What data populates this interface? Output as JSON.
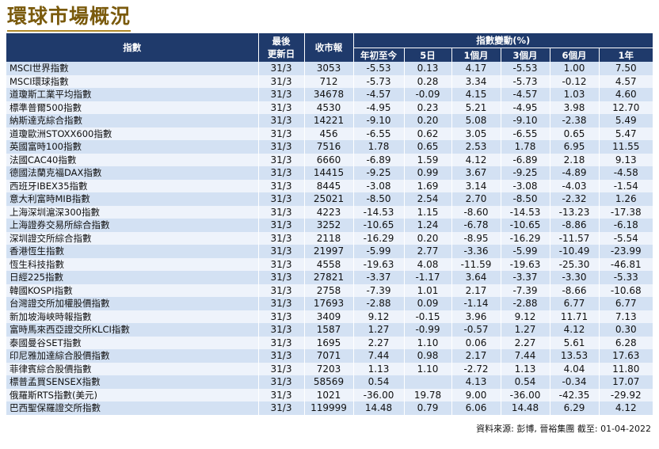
{
  "title": "環球市場概況",
  "headers": {
    "index": "指數",
    "last_update_l1": "最後",
    "last_update_l2": "更新日",
    "close": "收市報",
    "change_group": "指數變動(%)",
    "periods": [
      "年初至今",
      "5日",
      "1個月",
      "3個月",
      "6個月",
      "1年"
    ]
  },
  "rows": [
    {
      "name": "MSCI世界指數",
      "date": "31/3",
      "close": "3053",
      "ytd": "-5.53",
      "d5": "0.13",
      "m1": "4.17",
      "m3": "-5.53",
      "m6": "1.00",
      "y1": "7.50"
    },
    {
      "name": "MSCI環球指數",
      "date": "31/3",
      "close": "712",
      "ytd": "-5.73",
      "d5": "0.28",
      "m1": "3.34",
      "m3": "-5.73",
      "m6": "-0.12",
      "y1": "4.57"
    },
    {
      "name": "道瓊斯工業平均指數",
      "date": "31/3",
      "close": "34678",
      "ytd": "-4.57",
      "d5": "-0.09",
      "m1": "4.15",
      "m3": "-4.57",
      "m6": "1.03",
      "y1": "4.60"
    },
    {
      "name": "標準普爾500指數",
      "date": "31/3",
      "close": "4530",
      "ytd": "-4.95",
      "d5": "0.23",
      "m1": "5.21",
      "m3": "-4.95",
      "m6": "3.98",
      "y1": "12.70"
    },
    {
      "name": "納斯達克綜合指數",
      "date": "31/3",
      "close": "14221",
      "ytd": "-9.10",
      "d5": "0.20",
      "m1": "5.08",
      "m3": "-9.10",
      "m6": "-2.38",
      "y1": "5.49"
    },
    {
      "name": "道瓊歐洲STOXX600指數",
      "date": "31/3",
      "close": "456",
      "ytd": "-6.55",
      "d5": "0.62",
      "m1": "3.05",
      "m3": "-6.55",
      "m6": "0.65",
      "y1": "5.47"
    },
    {
      "name": "英國富時100指數",
      "date": "31/3",
      "close": "7516",
      "ytd": "1.78",
      "d5": "0.65",
      "m1": "2.53",
      "m3": "1.78",
      "m6": "6.95",
      "y1": "11.55"
    },
    {
      "name": "法國CAC40指數",
      "date": "31/3",
      "close": "6660",
      "ytd": "-6.89",
      "d5": "1.59",
      "m1": "4.12",
      "m3": "-6.89",
      "m6": "2.18",
      "y1": "9.13"
    },
    {
      "name": "德國法蘭克福DAX指數",
      "date": "31/3",
      "close": "14415",
      "ytd": "-9.25",
      "d5": "0.99",
      "m1": "3.67",
      "m3": "-9.25",
      "m6": "-4.89",
      "y1": "-4.58"
    },
    {
      "name": "西班牙IBEX35指數",
      "date": "31/3",
      "close": "8445",
      "ytd": "-3.08",
      "d5": "1.69",
      "m1": "3.14",
      "m3": "-3.08",
      "m6": "-4.03",
      "y1": "-1.54"
    },
    {
      "name": "意大利富時MIB指數",
      "date": "31/3",
      "close": "25021",
      "ytd": "-8.50",
      "d5": "2.54",
      "m1": "2.70",
      "m3": "-8.50",
      "m6": "-2.32",
      "y1": "1.26"
    },
    {
      "name": "上海深圳滬深300指數",
      "date": "31/3",
      "close": "4223",
      "ytd": "-14.53",
      "d5": "1.15",
      "m1": "-8.60",
      "m3": "-14.53",
      "m6": "-13.23",
      "y1": "-17.38"
    },
    {
      "name": "上海證券交易所綜合指數",
      "date": "31/3",
      "close": "3252",
      "ytd": "-10.65",
      "d5": "1.24",
      "m1": "-6.78",
      "m3": "-10.65",
      "m6": "-8.86",
      "y1": "-6.18"
    },
    {
      "name": "深圳證交所綜合指數",
      "date": "31/3",
      "close": "2118",
      "ytd": "-16.29",
      "d5": "0.20",
      "m1": "-8.95",
      "m3": "-16.29",
      "m6": "-11.57",
      "y1": "-5.54"
    },
    {
      "name": "香港恆生指數",
      "date": "31/3",
      "close": "21997",
      "ytd": "-5.99",
      "d5": "2.77",
      "m1": "-3.36",
      "m3": "-5.99",
      "m6": "-10.49",
      "y1": "-23.99"
    },
    {
      "name": "恆生科技指數",
      "date": "31/3",
      "close": "4558",
      "ytd": "-19.63",
      "d5": "4.08",
      "m1": "-11.59",
      "m3": "-19.63",
      "m6": "-25.30",
      "y1": "-46.81"
    },
    {
      "name": "日經225指數",
      "date": "31/3",
      "close": "27821",
      "ytd": "-3.37",
      "d5": "-1.17",
      "m1": "3.64",
      "m3": "-3.37",
      "m6": "-3.30",
      "y1": "-5.33"
    },
    {
      "name": "韓國KOSPI指數",
      "date": "31/3",
      "close": "2758",
      "ytd": "-7.39",
      "d5": "1.01",
      "m1": "2.17",
      "m3": "-7.39",
      "m6": "-8.66",
      "y1": "-10.68"
    },
    {
      "name": "台灣證交所加權股價指數",
      "date": "31/3",
      "close": "17693",
      "ytd": "-2.88",
      "d5": "0.09",
      "m1": "-1.14",
      "m3": "-2.88",
      "m6": "6.77",
      "y1": "6.77"
    },
    {
      "name": "新加坡海峽時報指數",
      "date": "31/3",
      "close": "3409",
      "ytd": "9.12",
      "d5": "-0.15",
      "m1": "3.96",
      "m3": "9.12",
      "m6": "11.71",
      "y1": "7.13"
    },
    {
      "name": "富時馬來西亞證交所KLCI指數",
      "date": "31/3",
      "close": "1587",
      "ytd": "1.27",
      "d5": "-0.99",
      "m1": "-0.57",
      "m3": "1.27",
      "m6": "4.12",
      "y1": "0.30"
    },
    {
      "name": "泰國曼谷SET指數",
      "date": "31/3",
      "close": "1695",
      "ytd": "2.27",
      "d5": "1.10",
      "m1": "0.06",
      "m3": "2.27",
      "m6": "5.61",
      "y1": "6.28"
    },
    {
      "name": "印尼雅加達綜合股價指數",
      "date": "31/3",
      "close": "7071",
      "ytd": "7.44",
      "d5": "0.98",
      "m1": "2.17",
      "m3": "7.44",
      "m6": "13.53",
      "y1": "17.63"
    },
    {
      "name": "菲律賓綜合股價指數",
      "date": "31/3",
      "close": "7203",
      "ytd": "1.13",
      "d5": "1.10",
      "m1": "-2.72",
      "m3": "1.13",
      "m6": "4.04",
      "y1": "11.80"
    },
    {
      "name": "標普孟買SENSEX指數",
      "date": "31/3",
      "close": "58569",
      "ytd": "0.54",
      "d5": "",
      "m1": "4.13",
      "m3": "0.54",
      "m6": "-0.34",
      "y1": "17.07"
    },
    {
      "name": "俄羅斯RTS指數(美元)",
      "date": "31/3",
      "close": "1021",
      "ytd": "-36.00",
      "d5": "19.78",
      "m1": "9.00",
      "m3": "-36.00",
      "m6": "-42.35",
      "y1": "-29.92"
    },
    {
      "name": "巴西聖保羅證交所指數",
      "date": "31/3",
      "close": "119999",
      "ytd": "14.48",
      "d5": "0.79",
      "m1": "6.06",
      "m3": "14.48",
      "m6": "6.29",
      "y1": "4.12"
    }
  ],
  "source": "資料來源: 彭博, 晉裕集團 截至: 01-04-2022",
  "colors": {
    "header_bg": "#1f3a6b",
    "row_odd": "#d3e1f3",
    "row_even": "#eef3fb",
    "title": "#7a5a0c"
  }
}
